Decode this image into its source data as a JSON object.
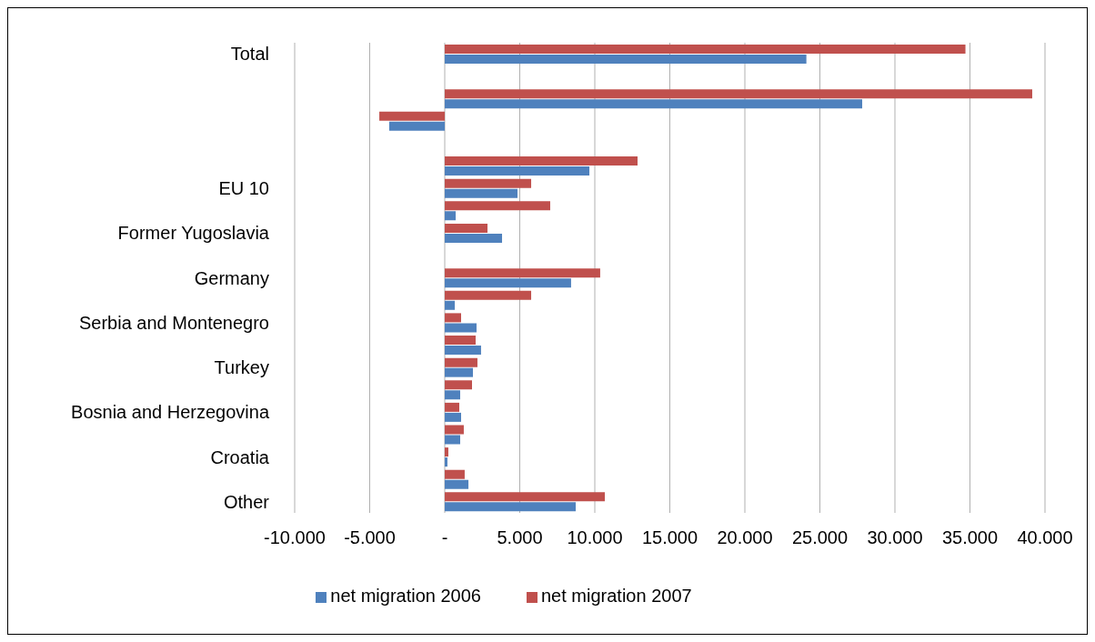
{
  "chart_data": {
    "type": "bar",
    "orientation": "horizontal",
    "categories": [
      "Total",
      null,
      null,
      null,
      null,
      null,
      "EU 10",
      null,
      "Former Yugoslavia",
      null,
      "Germany",
      null,
      "Serbia and Montenegro",
      null,
      "Turkey",
      null,
      "Bosnia and Herzegovina",
      null,
      "Croatia",
      null,
      "Other"
    ],
    "series": [
      {
        "name": "net migration 2007",
        "color": "#c0504d",
        "values": [
          34700,
          null,
          39150,
          -4360,
          null,
          12850,
          5760,
          7030,
          2850,
          null,
          10360,
          5760,
          1090,
          2060,
          2180,
          1820,
          970,
          1270,
          240,
          1330,
          10670
        ]
      },
      {
        "name": "net migration 2006",
        "color": "#4f81bd",
        "values": [
          24100,
          null,
          27820,
          -3700,
          null,
          9640,
          4850,
          730,
          3820,
          null,
          8420,
          670,
          2120,
          2420,
          1880,
          1030,
          1090,
          1030,
          180,
          1580,
          8730
        ]
      }
    ],
    "xlim": [
      -10000,
      40000
    ],
    "xticks": [
      {
        "value": -10000,
        "label": "-10.000"
      },
      {
        "value": -5000,
        "label": "-5.000"
      },
      {
        "value": 0,
        "label": "-"
      },
      {
        "value": 5000,
        "label": "5.000"
      },
      {
        "value": 10000,
        "label": "10.000"
      },
      {
        "value": 15000,
        "label": "15.000"
      },
      {
        "value": 20000,
        "label": "20.000"
      },
      {
        "value": 25000,
        "label": "25.000"
      },
      {
        "value": 30000,
        "label": "30.000"
      },
      {
        "value": 35000,
        "label": "35.000"
      },
      {
        "value": 40000,
        "label": "40.000"
      }
    ],
    "grid": "x",
    "legend": "bottom"
  }
}
